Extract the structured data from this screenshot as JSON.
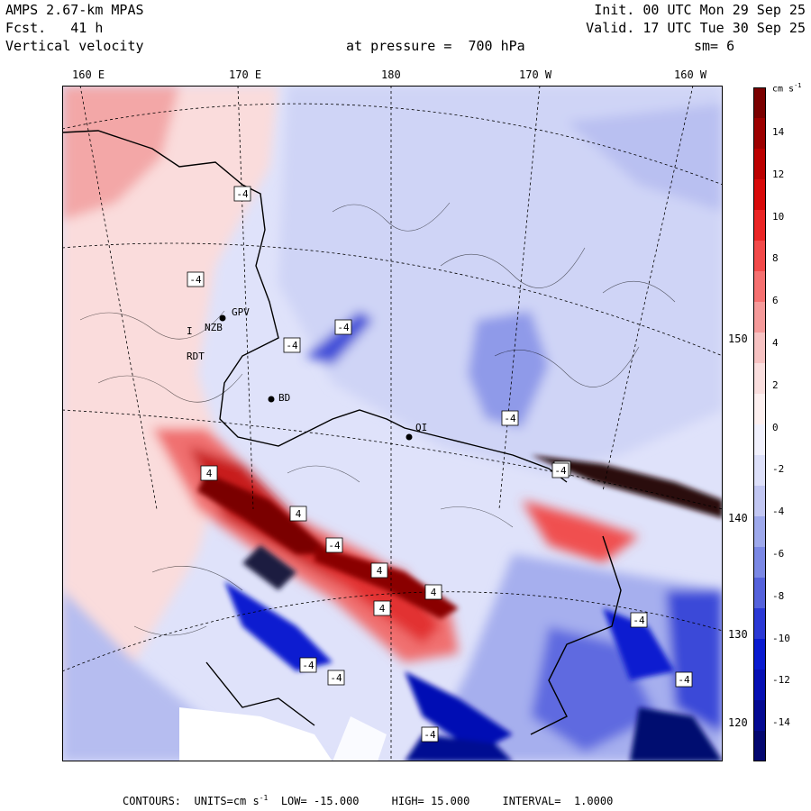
{
  "header": {
    "model": "AMPS 2.67-km MPAS",
    "fcst": "Fcst.   41 h",
    "field": "Vertical velocity",
    "init": "Init. 00 UTC Mon 29 Sep 25",
    "valid": "Valid. 17 UTC Tue 30 Sep 25",
    "pressure": "at pressure =  700 hPa",
    "smooth": "sm= 6"
  },
  "longitude_labels": [
    "160 E",
    "170 E",
    "180",
    "170 W",
    "160 W"
  ],
  "latitude_labels": [
    "150 W",
    "140 W",
    "130 W",
    "120 W"
  ],
  "station_labels": [
    "GPV",
    "NZB",
    "RDT",
    "I",
    "BD",
    "QI"
  ],
  "contour_labels": [
    "-4",
    "4"
  ],
  "colorbar": {
    "unit": "cm s",
    "unit_exp": "-1",
    "ticks": [
      "14",
      "12",
      "10",
      "8",
      "6",
      "4",
      "2",
      "0",
      "-2",
      "-4",
      "-6",
      "-8",
      "-10",
      "-12",
      "-14"
    ],
    "colors": [
      "#7a0000",
      "#9c0000",
      "#bb0000",
      "#d80a0a",
      "#ea2525",
      "#f24a4a",
      "#f57070",
      "#f59a9a",
      "#f7c2c2",
      "#fadede",
      "#fdf0f0",
      "#f1f1fd",
      "#dde0fa",
      "#c2c7f3",
      "#9ea9ec",
      "#7b88e5",
      "#5562dc",
      "#2b39d5",
      "#0a1bd0",
      "#0610b4",
      "#040a92",
      "#030770"
    ]
  },
  "colors": {
    "warm_dark": "#7a0000",
    "warm": "#e33030",
    "warm_light": "#f7c8c8",
    "cool_light": "#c8cef5",
    "cool": "#3444d8",
    "cool_dark": "#030770"
  },
  "footer": {
    "label": "CONTOURS:",
    "units": "UNITS=cm s",
    "units_exp": "-1",
    "low": "LOW= -15.000",
    "high": "HIGH= 15.000",
    "interval": "INTERVAL=  1.0000"
  }
}
